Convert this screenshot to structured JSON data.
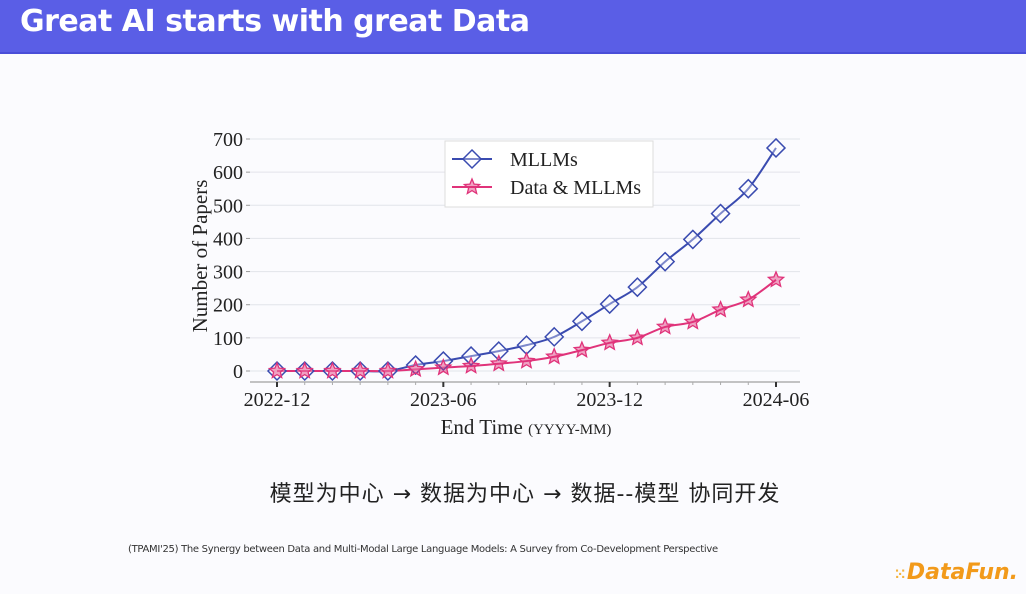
{
  "header": {
    "title": "Great AI starts with great Data"
  },
  "subtitle": "模型为中心  →  数据为中心 → 数据--模型 协同开发",
  "citation": "(TPAMI'25) The Synergy between Data and Multi-Modal Large Language Models: A Survey from Co-Development Perspective",
  "logo": {
    "text": "DataFun.",
    "icon": "sparkle-icon"
  },
  "colors": {
    "header_bg": "#5a5ee6",
    "mllms": "#3a4bb0",
    "data_mllms": "#e0337a"
  },
  "chart_data": {
    "type": "line",
    "title": "",
    "xlabel": "End Time",
    "xlabel_suffix": "(YYYY-MM)",
    "ylabel": "Number of Papers",
    "ylim": [
      0,
      700
    ],
    "yticks": [
      0,
      100,
      200,
      300,
      400,
      500,
      600,
      700
    ],
    "x": [
      "2022-12",
      "2023-01",
      "2023-02",
      "2023-03",
      "2023-04",
      "2023-05",
      "2023-06",
      "2023-07",
      "2023-08",
      "2023-09",
      "2023-10",
      "2023-11",
      "2023-12",
      "2024-01",
      "2024-02",
      "2024-03",
      "2024-04",
      "2024-05",
      "2024-06"
    ],
    "xtick_labels": [
      "2022-12",
      "2023-06",
      "2023-12",
      "2024-06"
    ],
    "grid": true,
    "legend": "top-center",
    "series": [
      {
        "name": "MLLMs",
        "marker": "diamond",
        "color": "#3a4bb0",
        "values": [
          0,
          0,
          0,
          0,
          0,
          18,
          30,
          45,
          60,
          78,
          103,
          150,
          202,
          253,
          330,
          397,
          475,
          550,
          673
        ]
      },
      {
        "name": "Data & MLLMs",
        "marker": "star",
        "color": "#e0337a",
        "values": [
          0,
          0,
          0,
          0,
          0,
          5,
          10,
          15,
          22,
          30,
          43,
          63,
          85,
          100,
          133,
          148,
          185,
          215,
          275
        ]
      }
    ]
  }
}
